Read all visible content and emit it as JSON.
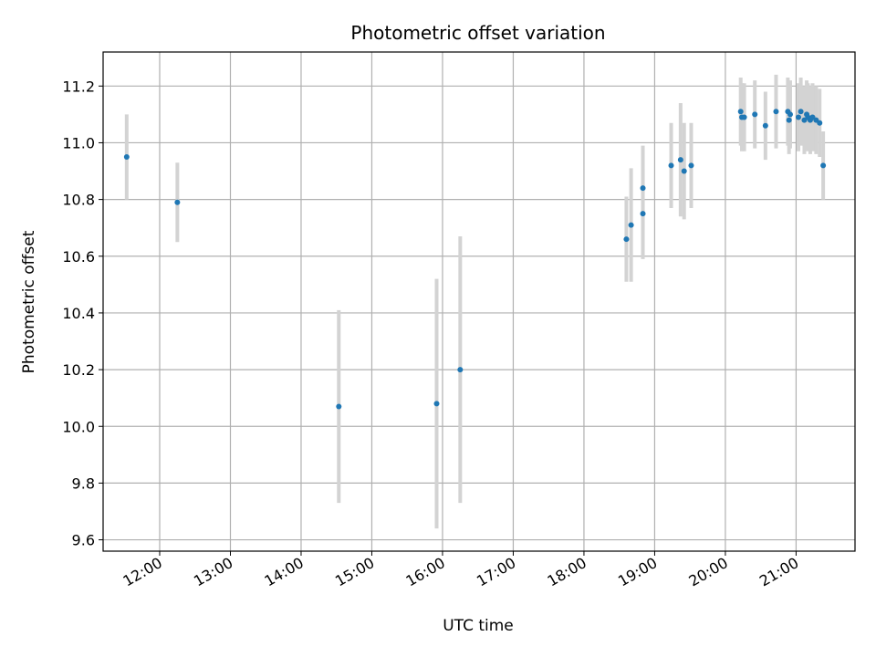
{
  "chart_data": {
    "type": "scatter",
    "title": "Photometric offset variation",
    "xlabel": "UTC time",
    "ylabel": "Photometric offset",
    "x_tick_labels": [
      "12:00",
      "13:00",
      "14:00",
      "15:00",
      "16:00",
      "17:00",
      "18:00",
      "19:00",
      "20:00",
      "21:00"
    ],
    "y_ticks": [
      9.6,
      9.8,
      10.0,
      10.2,
      10.4,
      10.6,
      10.8,
      11.0,
      11.2
    ],
    "y_tick_labels": [
      "9.6",
      "9.8",
      "10.0",
      "10.2",
      "10.4",
      "10.6",
      "10.8",
      "11.0",
      "11.2"
    ],
    "xlim": [
      "11:12",
      "21:50"
    ],
    "ylim": [
      9.56,
      11.32
    ],
    "grid": true,
    "marker_color": "#1f77b4",
    "errorbar_color": "#d3d3d3",
    "points": [
      {
        "x": "11:32",
        "y": 10.95,
        "err": 0.15
      },
      {
        "x": "12:15",
        "y": 10.79,
        "err": 0.14
      },
      {
        "x": "14:32",
        "y": 10.07,
        "err": 0.34
      },
      {
        "x": "15:55",
        "y": 10.08,
        "err": 0.44
      },
      {
        "x": "16:15",
        "y": 10.2,
        "err": 0.47
      },
      {
        "x": "18:36",
        "y": 10.66,
        "err": 0.15
      },
      {
        "x": "18:40",
        "y": 10.71,
        "err": 0.2
      },
      {
        "x": "18:50",
        "y": 10.84,
        "err": 0.15
      },
      {
        "x": "18:50",
        "y": 10.75,
        "err": 0.16
      },
      {
        "x": "19:14",
        "y": 10.92,
        "err": 0.15
      },
      {
        "x": "19:22",
        "y": 10.94,
        "err": 0.2
      },
      {
        "x": "19:25",
        "y": 10.9,
        "err": 0.17
      },
      {
        "x": "19:31",
        "y": 10.92,
        "err": 0.15
      },
      {
        "x": "20:13",
        "y": 11.11,
        "err": 0.12
      },
      {
        "x": "20:14",
        "y": 11.09,
        "err": 0.12
      },
      {
        "x": "20:16",
        "y": 11.09,
        "err": 0.12
      },
      {
        "x": "20:25",
        "y": 11.1,
        "err": 0.12
      },
      {
        "x": "20:34",
        "y": 11.06,
        "err": 0.12
      },
      {
        "x": "20:43",
        "y": 11.11,
        "err": 0.13
      },
      {
        "x": "20:53",
        "y": 11.11,
        "err": 0.12
      },
      {
        "x": "20:54",
        "y": 11.08,
        "err": 0.12
      },
      {
        "x": "20:55",
        "y": 11.1,
        "err": 0.12
      },
      {
        "x": "21:02",
        "y": 11.09,
        "err": 0.12
      },
      {
        "x": "21:04",
        "y": 11.11,
        "err": 0.12
      },
      {
        "x": "21:07",
        "y": 11.08,
        "err": 0.12
      },
      {
        "x": "21:09",
        "y": 11.1,
        "err": 0.12
      },
      {
        "x": "21:10",
        "y": 11.09,
        "err": 0.12
      },
      {
        "x": "21:12",
        "y": 11.08,
        "err": 0.12
      },
      {
        "x": "21:14",
        "y": 11.09,
        "err": 0.12
      },
      {
        "x": "21:17",
        "y": 11.08,
        "err": 0.12
      },
      {
        "x": "21:20",
        "y": 11.07,
        "err": 0.12
      },
      {
        "x": "21:23",
        "y": 10.92,
        "err": 0.12
      }
    ]
  }
}
